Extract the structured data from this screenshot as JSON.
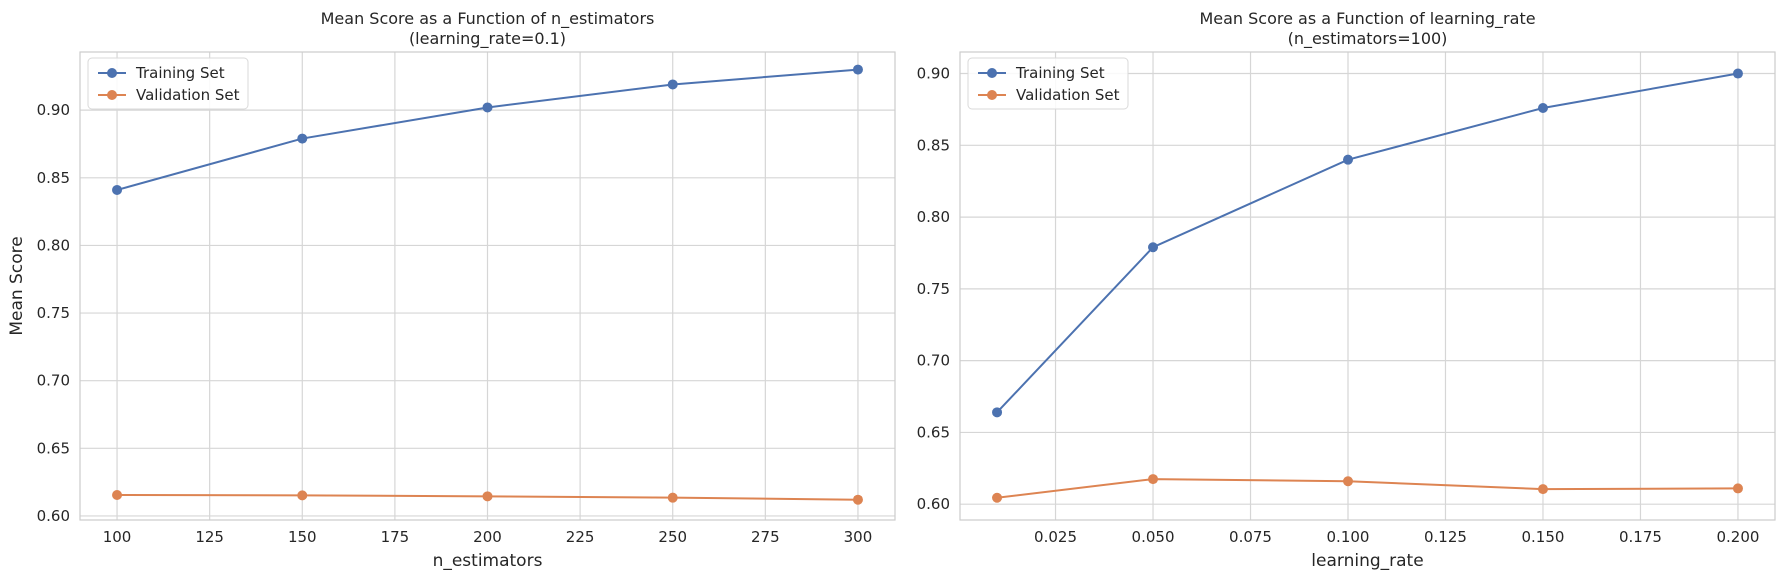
{
  "chart_data": [
    {
      "type": "line",
      "title": "Mean Score as a Function of n_estimators",
      "subtitle": "(learning_rate=0.1)",
      "xlabel": "n_estimators",
      "ylabel": "Mean Score",
      "xlim": [
        90,
        310
      ],
      "ylim": [
        0.597,
        0.943
      ],
      "xticks": [
        100,
        125,
        150,
        175,
        200,
        225,
        250,
        275,
        300
      ],
      "xtick_labels": [
        "100",
        "125",
        "150",
        "175",
        "200",
        "225",
        "250",
        "275",
        "300"
      ],
      "yticks": [
        0.6,
        0.65,
        0.7,
        0.75,
        0.8,
        0.85,
        0.9
      ],
      "ytick_labels": [
        "0.60",
        "0.65",
        "0.70",
        "0.75",
        "0.80",
        "0.85",
        "0.90"
      ],
      "grid": true,
      "legend_position": "top-left",
      "x": [
        100,
        150,
        200,
        250,
        300
      ],
      "series": [
        {
          "name": "Training Set",
          "color": "#4c72b0",
          "values": [
            0.841,
            0.879,
            0.902,
            0.919,
            0.93
          ]
        },
        {
          "name": "Validation Set",
          "color": "#dd8452",
          "values": [
            0.6155,
            0.6152,
            0.6145,
            0.6135,
            0.612
          ]
        }
      ]
    },
    {
      "type": "line",
      "title": "Mean Score as a Function of learning_rate",
      "subtitle": "(n_estimators=100)",
      "xlabel": "learning_rate",
      "ylabel": "",
      "xlim": [
        0.0005,
        0.2095
      ],
      "ylim": [
        0.589,
        0.915
      ],
      "xticks": [
        0.025,
        0.05,
        0.075,
        0.1,
        0.125,
        0.15,
        0.175,
        0.2
      ],
      "xtick_labels": [
        "0.025",
        "0.050",
        "0.075",
        "0.100",
        "0.125",
        "0.150",
        "0.175",
        "0.200"
      ],
      "yticks": [
        0.6,
        0.65,
        0.7,
        0.75,
        0.8,
        0.85,
        0.9
      ],
      "ytick_labels": [
        "0.60",
        "0.65",
        "0.70",
        "0.75",
        "0.80",
        "0.85",
        "0.90"
      ],
      "grid": true,
      "legend_position": "top-left",
      "x": [
        0.01,
        0.05,
        0.1,
        0.15,
        0.2
      ],
      "series": [
        {
          "name": "Training Set",
          "color": "#4c72b0",
          "values": [
            0.664,
            0.779,
            0.84,
            0.876,
            0.9
          ]
        },
        {
          "name": "Validation Set",
          "color": "#dd8452",
          "values": [
            0.6045,
            0.6175,
            0.616,
            0.6105,
            0.611
          ]
        }
      ]
    }
  ]
}
